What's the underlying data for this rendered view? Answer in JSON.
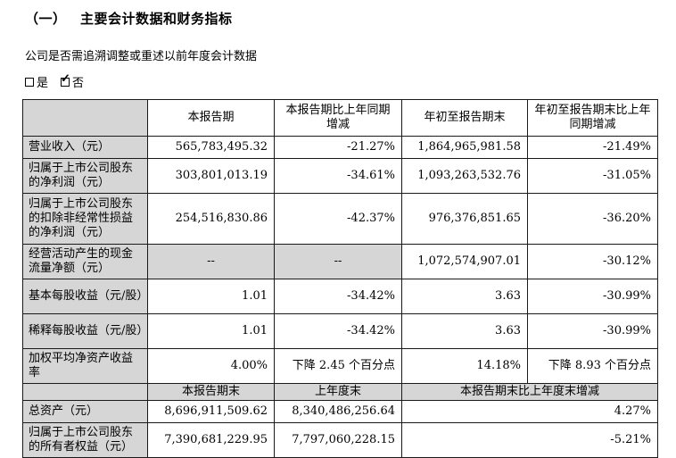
{
  "page": {
    "title": "（一） 主要会计数据和财务指标",
    "intro": "公司是否需追溯调整或重述以前年度会计数据",
    "checkbox_yes_label": "是",
    "checkbox_no_label": "否",
    "checkbox_checked": "否"
  },
  "colors": {
    "cell_shading": "#d6d6d6",
    "border": "#1a1a1a",
    "background": "#ffffff"
  },
  "table": {
    "header_row": {
      "blank": "",
      "cols": [
        "本报告期",
        "本报告期比上年同期增减",
        "年初至报告期末",
        "年初至报告期末比上年同期增减"
      ]
    },
    "rows": [
      {
        "label": "营业收入（元）",
        "size": "r1",
        "values": [
          "565,783,495.32",
          "-21.27%",
          "1,864,965,981.58",
          "-21.49%"
        ]
      },
      {
        "label": "归属于上市公司股东的净利润（元）",
        "size": "r2",
        "values": [
          "303,801,013.19",
          "-34.61%",
          "1,093,263,532.76",
          "-31.05%"
        ]
      },
      {
        "label": "归属于上市公司股东的扣除非经常性损益的净利润（元）",
        "size": "r3",
        "values": [
          "254,516,830.86",
          "-42.37%",
          "976,376,851.65",
          "-36.20%"
        ]
      },
      {
        "label": "经营活动产生的现金流量净额（元）",
        "size": "r2",
        "dash": true,
        "values": [
          "--",
          "--",
          "1,072,574,907.01",
          "-30.12%"
        ]
      },
      {
        "label": "基本每股收益（元/股）",
        "size": "r2",
        "values": [
          "1.01",
          "-34.42%",
          "3.63",
          "-30.99%"
        ]
      },
      {
        "label": "稀释每股收益（元/股）",
        "size": "r2",
        "values": [
          "1.01",
          "-34.42%",
          "3.63",
          "-30.99%"
        ]
      },
      {
        "label": "加权平均净资产收益率",
        "size": "r2",
        "values": [
          "4.00%",
          "下降 2.45 个百分点",
          "14.18%",
          "下降 8.93 个百分点"
        ]
      }
    ],
    "header_row2": {
      "blank": "",
      "cols": [
        "本报告期末",
        "上年度末",
        "本报告期末比上年度末增减"
      ]
    },
    "rows2": [
      {
        "label": "总资产（元）",
        "size": "r1",
        "values": [
          "8,696,911,509.62",
          "8,340,486,256.64",
          "4.27%"
        ]
      },
      {
        "label": "归属于上市公司股东的所有者权益（元）",
        "size": "r2",
        "values": [
          "7,390,681,229.95",
          "7,797,060,228.15",
          "-5.21%"
        ]
      }
    ]
  }
}
